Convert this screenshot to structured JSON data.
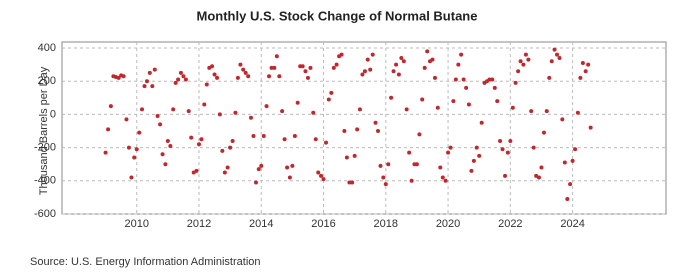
{
  "chart_data": {
    "type": "scatter",
    "title": "Monthly U.S. Stock Change of Normal Butane",
    "ylabel": "Thousand Barrels per Day",
    "source": "Source: U.S. Energy Information Administration",
    "color": "#c0282d",
    "grid": true,
    "xlim": [
      2007.6,
      2027.0
    ],
    "xticks": [
      2010,
      2012,
      2014,
      2016,
      2018,
      2020,
      2022,
      2024
    ],
    "ylim": [
      -600,
      400
    ],
    "yticks": [
      -600,
      -400,
      -200,
      0,
      200,
      400
    ],
    "x": [
      2009,
      2009.08,
      2009.17,
      2009.25,
      2009.33,
      2009.42,
      2009.5,
      2009.58,
      2009.67,
      2009.75,
      2009.83,
      2009.92,
      2010,
      2010.08,
      2010.17,
      2010.25,
      2010.33,
      2010.42,
      2010.5,
      2010.58,
      2010.67,
      2010.75,
      2010.83,
      2010.92,
      2011,
      2011.08,
      2011.17,
      2011.25,
      2011.33,
      2011.42,
      2011.5,
      2011.58,
      2011.67,
      2011.75,
      2011.83,
      2011.92,
      2012,
      2012.08,
      2012.17,
      2012.25,
      2012.33,
      2012.42,
      2012.5,
      2012.58,
      2012.67,
      2012.75,
      2012.83,
      2012.92,
      2013,
      2013.08,
      2013.17,
      2013.25,
      2013.33,
      2013.42,
      2013.5,
      2013.58,
      2013.67,
      2013.75,
      2013.83,
      2013.92,
      2014,
      2014.08,
      2014.17,
      2014.25,
      2014.33,
      2014.42,
      2014.5,
      2014.58,
      2014.67,
      2014.75,
      2014.83,
      2014.92,
      2015,
      2015.08,
      2015.17,
      2015.25,
      2015.33,
      2015.42,
      2015.5,
      2015.58,
      2015.67,
      2015.75,
      2015.83,
      2015.92,
      2016,
      2016.08,
      2016.17,
      2016.25,
      2016.33,
      2016.42,
      2016.5,
      2016.58,
      2016.67,
      2016.75,
      2016.83,
      2016.92,
      2017,
      2017.08,
      2017.17,
      2017.25,
      2017.33,
      2017.42,
      2017.5,
      2017.58,
      2017.67,
      2017.75,
      2017.83,
      2017.92,
      2018,
      2018.08,
      2018.17,
      2018.25,
      2018.33,
      2018.42,
      2018.5,
      2018.58,
      2018.67,
      2018.75,
      2018.83,
      2018.92,
      2019,
      2019.08,
      2019.17,
      2019.25,
      2019.33,
      2019.42,
      2019.5,
      2019.58,
      2019.67,
      2019.75,
      2019.83,
      2019.92,
      2020,
      2020.08,
      2020.17,
      2020.25,
      2020.33,
      2020.42,
      2020.5,
      2020.58,
      2020.67,
      2020.75,
      2020.83,
      2020.92,
      2021,
      2021.08,
      2021.17,
      2021.25,
      2021.33,
      2021.42,
      2021.5,
      2021.58,
      2021.67,
      2021.75,
      2021.83,
      2021.92,
      2022,
      2022.08,
      2022.17,
      2022.25,
      2022.33,
      2022.42,
      2022.5,
      2022.58,
      2022.67,
      2022.75,
      2022.83,
      2022.92,
      2023,
      2023.08,
      2023.17,
      2023.25,
      2023.33,
      2023.42,
      2023.5,
      2023.58,
      2023.67,
      2023.75,
      2023.83,
      2023.92,
      2024,
      2024.08,
      2024.17,
      2024.25,
      2024.33,
      2024.42,
      2024.5,
      2024.58
    ],
    "values": [
      -230,
      -90,
      50,
      230,
      225,
      220,
      235,
      230,
      -30,
      -200,
      -380,
      -260,
      -210,
      -110,
      30,
      170,
      200,
      250,
      170,
      270,
      -10,
      -60,
      -240,
      -300,
      -160,
      -190,
      30,
      190,
      210,
      250,
      230,
      210,
      20,
      -140,
      -350,
      -340,
      -180,
      -150,
      60,
      180,
      280,
      290,
      240,
      220,
      0,
      -220,
      -350,
      -320,
      -200,
      -160,
      10,
      220,
      300,
      270,
      250,
      230,
      -20,
      -130,
      -410,
      -330,
      -310,
      -130,
      50,
      230,
      280,
      280,
      350,
      230,
      20,
      -150,
      -320,
      -380,
      -310,
      -130,
      70,
      290,
      290,
      260,
      220,
      280,
      10,
      -150,
      -350,
      -370,
      -390,
      -170,
      90,
      130,
      280,
      300,
      350,
      360,
      -100,
      -260,
      -410,
      -410,
      -250,
      -90,
      30,
      240,
      260,
      330,
      270,
      360,
      -50,
      -100,
      -310,
      -380,
      -420,
      -300,
      100,
      260,
      300,
      240,
      340,
      320,
      30,
      -230,
      -400,
      -300,
      -300,
      -120,
      90,
      280,
      380,
      320,
      330,
      220,
      40,
      -320,
      -380,
      -400,
      -230,
      -200,
      80,
      210,
      300,
      360,
      210,
      160,
      60,
      -340,
      -280,
      -200,
      -250,
      -50,
      190,
      200,
      210,
      210,
      160,
      80,
      -160,
      -210,
      -370,
      -230,
      -160,
      40,
      190,
      260,
      320,
      300,
      360,
      330,
      20,
      -200,
      -370,
      -380,
      -320,
      -110,
      20,
      220,
      320,
      390,
      360,
      340,
      -30,
      -290,
      -510,
      -420,
      -280,
      -210,
      10,
      220,
      310,
      260,
      300,
      -80
    ]
  }
}
